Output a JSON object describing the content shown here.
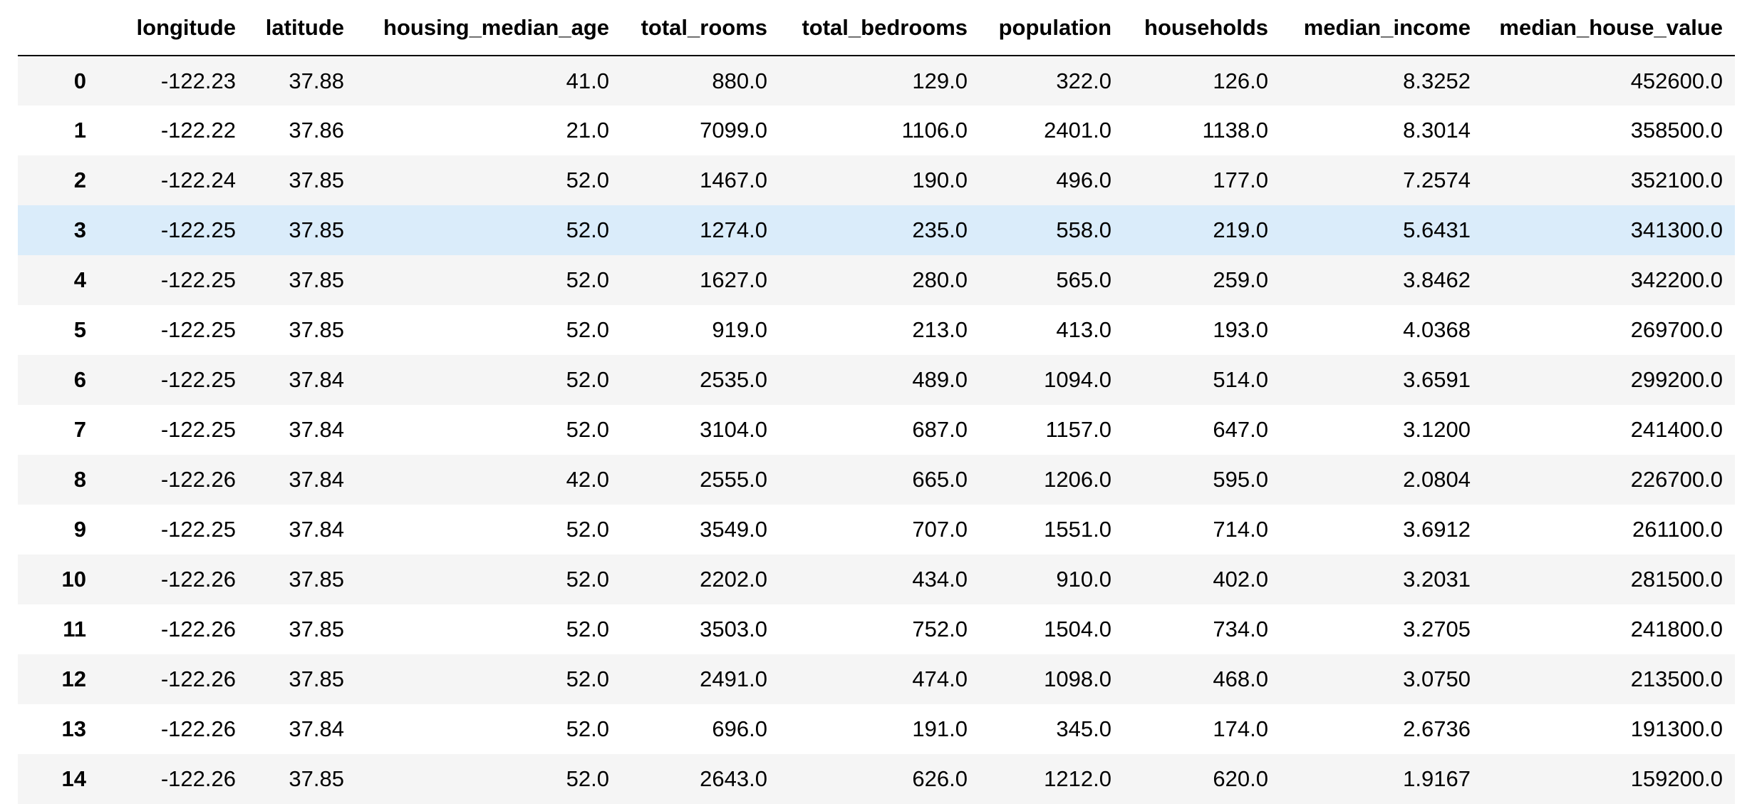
{
  "columns": [
    "",
    "longitude",
    "latitude",
    "housing_median_age",
    "total_rooms",
    "total_bedrooms",
    "population",
    "households",
    "median_income",
    "median_house_value"
  ],
  "highlighted_row_index": 3,
  "colors": {
    "row_odd": "#f5f5f5",
    "row_even": "#ffffff",
    "row_hover": "#daecfa",
    "header_rule": "#000000"
  },
  "rows": [
    [
      "0",
      "-122.23",
      "37.88",
      "41.0",
      "880.0",
      "129.0",
      "322.0",
      "126.0",
      "8.3252",
      "452600.0"
    ],
    [
      "1",
      "-122.22",
      "37.86",
      "21.0",
      "7099.0",
      "1106.0",
      "2401.0",
      "1138.0",
      "8.3014",
      "358500.0"
    ],
    [
      "2",
      "-122.24",
      "37.85",
      "52.0",
      "1467.0",
      "190.0",
      "496.0",
      "177.0",
      "7.2574",
      "352100.0"
    ],
    [
      "3",
      "-122.25",
      "37.85",
      "52.0",
      "1274.0",
      "235.0",
      "558.0",
      "219.0",
      "5.6431",
      "341300.0"
    ],
    [
      "4",
      "-122.25",
      "37.85",
      "52.0",
      "1627.0",
      "280.0",
      "565.0",
      "259.0",
      "3.8462",
      "342200.0"
    ],
    [
      "5",
      "-122.25",
      "37.85",
      "52.0",
      "919.0",
      "213.0",
      "413.0",
      "193.0",
      "4.0368",
      "269700.0"
    ],
    [
      "6",
      "-122.25",
      "37.84",
      "52.0",
      "2535.0",
      "489.0",
      "1094.0",
      "514.0",
      "3.6591",
      "299200.0"
    ],
    [
      "7",
      "-122.25",
      "37.84",
      "52.0",
      "3104.0",
      "687.0",
      "1157.0",
      "647.0",
      "3.1200",
      "241400.0"
    ],
    [
      "8",
      "-122.26",
      "37.84",
      "42.0",
      "2555.0",
      "665.0",
      "1206.0",
      "595.0",
      "2.0804",
      "226700.0"
    ],
    [
      "9",
      "-122.25",
      "37.84",
      "52.0",
      "3549.0",
      "707.0",
      "1551.0",
      "714.0",
      "3.6912",
      "261100.0"
    ],
    [
      "10",
      "-122.26",
      "37.85",
      "52.0",
      "2202.0",
      "434.0",
      "910.0",
      "402.0",
      "3.2031",
      "281500.0"
    ],
    [
      "11",
      "-122.26",
      "37.85",
      "52.0",
      "3503.0",
      "752.0",
      "1504.0",
      "734.0",
      "3.2705",
      "241800.0"
    ],
    [
      "12",
      "-122.26",
      "37.85",
      "52.0",
      "2491.0",
      "474.0",
      "1098.0",
      "468.0",
      "3.0750",
      "213500.0"
    ],
    [
      "13",
      "-122.26",
      "37.84",
      "52.0",
      "696.0",
      "191.0",
      "345.0",
      "174.0",
      "2.6736",
      "191300.0"
    ],
    [
      "14",
      "-122.26",
      "37.85",
      "52.0",
      "2643.0",
      "626.0",
      "1212.0",
      "620.0",
      "1.9167",
      "159200.0"
    ]
  ]
}
